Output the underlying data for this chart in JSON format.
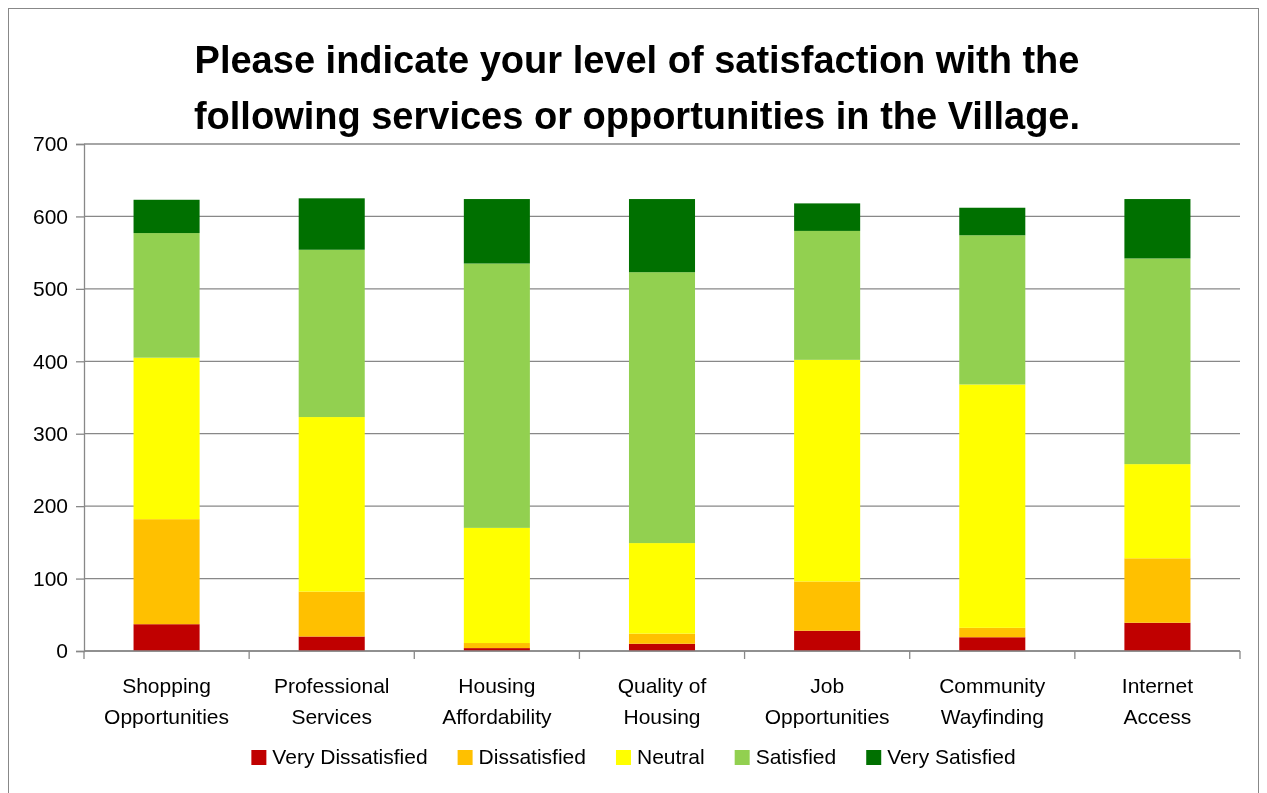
{
  "chart_data": {
    "type": "bar",
    "stacked": true,
    "title": "Please indicate your level of satisfaction with the following services or opportunities in the Village.",
    "categories": [
      "Shopping Opportunities",
      "Professional Services",
      "Housing Affordability",
      "Quality of Housing",
      "Job Opportunities",
      "Community Wayfinding",
      "Internet Access"
    ],
    "series": [
      {
        "name": "Very Dissatisfied",
        "color": "#c00000",
        "values": [
          37,
          20,
          4,
          10,
          28,
          19,
          39
        ]
      },
      {
        "name": "Dissatisfied",
        "color": "#ffc000",
        "values": [
          145,
          62,
          7,
          14,
          68,
          13,
          89
        ]
      },
      {
        "name": "Neutral",
        "color": "#ffff00",
        "values": [
          223,
          241,
          159,
          125,
          306,
          336,
          130
        ]
      },
      {
        "name": "Satisfied",
        "color": "#92d050",
        "values": [
          172,
          231,
          365,
          374,
          178,
          206,
          284
        ]
      },
      {
        "name": "Very Satisfied",
        "color": "#007000",
        "values": [
          46,
          71,
          89,
          101,
          38,
          38,
          82
        ]
      }
    ],
    "ylim": [
      0,
      700
    ],
    "yticks": [
      0,
      100,
      200,
      300,
      400,
      500,
      600,
      700
    ],
    "grid": "y",
    "legend": "bottom"
  }
}
